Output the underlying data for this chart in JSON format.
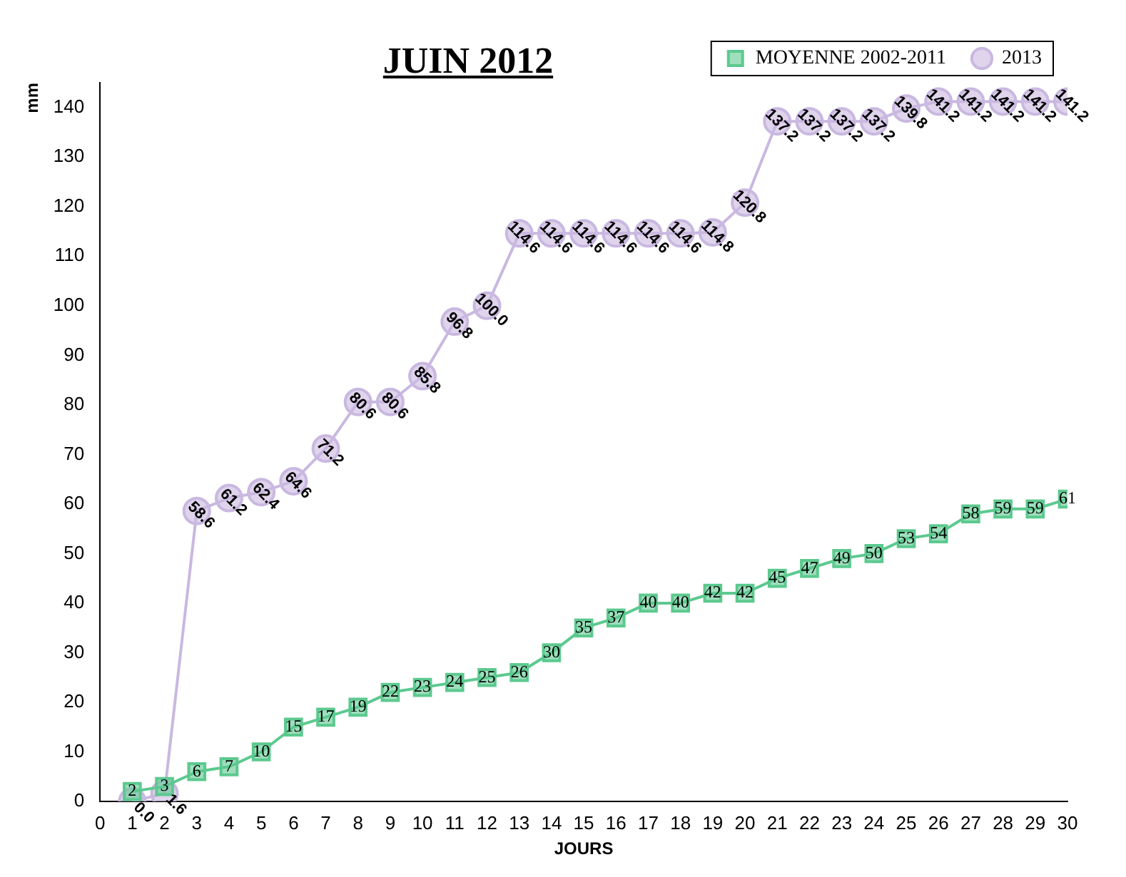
{
  "chart_data": {
    "type": "line",
    "title": "JUIN 2012",
    "xlabel": "JOURS",
    "ylabel": "mm",
    "x": [
      1,
      2,
      3,
      4,
      5,
      6,
      7,
      8,
      9,
      10,
      11,
      12,
      13,
      14,
      15,
      16,
      17,
      18,
      19,
      20,
      21,
      22,
      23,
      24,
      25,
      26,
      27,
      28,
      29,
      30
    ],
    "xlim": [
      0,
      30
    ],
    "xticks": [
      0,
      1,
      2,
      3,
      4,
      5,
      6,
      7,
      8,
      9,
      10,
      11,
      12,
      13,
      14,
      15,
      16,
      17,
      18,
      19,
      20,
      21,
      22,
      23,
      24,
      25,
      26,
      27,
      28,
      29,
      30
    ],
    "ylim": [
      0,
      145
    ],
    "yticks": [
      0,
      10,
      20,
      30,
      40,
      50,
      60,
      70,
      80,
      90,
      100,
      110,
      120,
      130,
      140
    ],
    "grid": false,
    "legend": "top right",
    "series": [
      {
        "name": "MOYENNE 2002-2011",
        "color": "#5cc98f",
        "marker": "square",
        "values": [
          2,
          3,
          6,
          7,
          10,
          15,
          17,
          19,
          22,
          23,
          24,
          25,
          26,
          30,
          35,
          37,
          40,
          40,
          42,
          42,
          45,
          47,
          49,
          50,
          53,
          54,
          58,
          59,
          59,
          61
        ],
        "value_labels": [
          "2",
          "3",
          "6",
          "7",
          "10",
          "15",
          "17",
          "19",
          "22",
          "23",
          "24",
          "25",
          "26",
          "30",
          "35",
          "37",
          "40",
          "40",
          "42",
          "42",
          "45",
          "47",
          "49",
          "50",
          "53",
          "54",
          "58",
          "59",
          "59",
          "61"
        ]
      },
      {
        "name": "2013",
        "color": "#c9b8e0",
        "marker": "circle",
        "values": [
          0,
          1.6,
          58.6,
          61.2,
          62.4,
          64.6,
          71.2,
          80.6,
          80.6,
          85.8,
          96.8,
          100,
          114.6,
          114.6,
          114.6,
          114.6,
          114.6,
          114.6,
          114.8,
          120.8,
          137.2,
          137.2,
          137.2,
          137.2,
          139.8,
          141.2,
          141.2,
          141.2,
          141.2,
          141.2
        ],
        "value_labels": [
          "0.0",
          "1.6",
          "58.6",
          "61.2",
          "62.4",
          "64.6",
          "71.2",
          "80.6",
          "80.6",
          "85.8",
          "96.8",
          "100.0",
          "114.6",
          "114.6",
          "114.6",
          "114.6",
          "114.6",
          "114.6",
          "114.8",
          "120.8",
          "137.2",
          "137.2",
          "137.2",
          "137.2",
          "139.8",
          "141.2",
          "141.2",
          "141.2",
          "141.2",
          "141.2"
        ]
      }
    ]
  }
}
